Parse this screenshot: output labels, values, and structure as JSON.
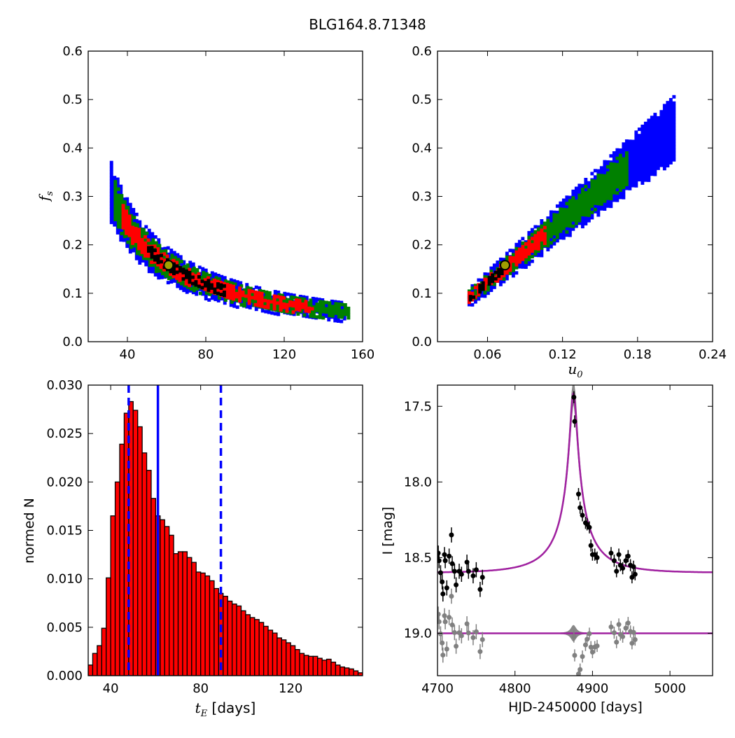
{
  "figure_title": "BLG164.8.71348",
  "colors": {
    "blue": "#0000ff",
    "green": "#008000",
    "red": "#ff0000",
    "black": "#000000",
    "marker_fill": "#a0a000",
    "marker_edge": "#000000",
    "hist_bar": "#ff0000",
    "model_line": "#a020a0",
    "model_band": "#888888",
    "residual_points": "#808080"
  },
  "chart_data": [
    {
      "type": "heatmap",
      "panel": "top-left",
      "xlabel": "",
      "ylabel": "f_s",
      "xlim": [
        20,
        160
      ],
      "ylim": [
        0.0,
        0.6
      ],
      "xticks": [
        "40",
        "80",
        "120",
        "160"
      ],
      "yticks": [
        "0.0",
        "0.1",
        "0.2",
        "0.3",
        "0.4",
        "0.5",
        "0.6"
      ],
      "relation": "fs = 9.6 / tE",
      "confidence_regions": [
        {
          "level": "outer",
          "color": "blue",
          "tE_range": [
            31,
            150
          ],
          "rel_halfwidth": 0.18
        },
        {
          "level": "mid",
          "color": "green",
          "tE_range": [
            33,
            153
          ],
          "rel_halfwidth": 0.12
        },
        {
          "level": "inner",
          "color": "red",
          "tE_range": [
            37,
            135
          ],
          "rel_halfwidth": 0.065
        },
        {
          "level": "core",
          "color": "black",
          "tE_range": [
            50,
            90
          ],
          "rel_halfwidth": 0.02
        }
      ],
      "best_fit": {
        "tE": 61,
        "fs": 0.158
      }
    },
    {
      "type": "heatmap",
      "panel": "top-right",
      "xlabel": "u_0",
      "ylabel": "",
      "xlim": [
        0.02,
        0.24
      ],
      "ylim": [
        0.0,
        0.6
      ],
      "xticks": [
        "0.06",
        "0.12",
        "0.18",
        "0.24"
      ],
      "yticks": [
        "0.0",
        "0.1",
        "0.2",
        "0.3",
        "0.4",
        "0.5",
        "0.6"
      ],
      "relation": "fs = 2.125 * u0",
      "confidence_regions": [
        {
          "level": "outer",
          "color": "blue",
          "u0_range": [
            0.044,
            0.209
          ],
          "rel_halfwidth": 0.14
        },
        {
          "level": "mid",
          "color": "green",
          "u0_range": [
            0.044,
            0.172
          ],
          "rel_halfwidth": 0.09
        },
        {
          "level": "inner",
          "color": "red",
          "u0_range": [
            0.044,
            0.105
          ],
          "rel_halfwidth": 0.05
        },
        {
          "level": "core",
          "color": "black",
          "u0_range": [
            0.045,
            0.072
          ],
          "rel_halfwidth": 0.015
        }
      ],
      "best_fit": {
        "u0": 0.074,
        "fs": 0.158
      }
    },
    {
      "type": "bar",
      "panel": "bottom-left",
      "xlabel": "t_E [days]",
      "ylabel": "normed N",
      "xlim": [
        30,
        152
      ],
      "ylim": [
        0.0,
        0.03
      ],
      "xticks": [
        "40",
        "80",
        "120"
      ],
      "yticks": [
        "0.000",
        "0.005",
        "0.010",
        "0.015",
        "0.020",
        "0.025",
        "0.030"
      ],
      "bin_start": 30,
      "bin_width": 2,
      "values": [
        0.0011,
        0.0023,
        0.0031,
        0.0049,
        0.0101,
        0.0165,
        0.02,
        0.0239,
        0.0271,
        0.0283,
        0.0274,
        0.0257,
        0.023,
        0.0212,
        0.0183,
        0.0165,
        0.0161,
        0.0154,
        0.0145,
        0.0126,
        0.0128,
        0.0128,
        0.0122,
        0.0117,
        0.0107,
        0.0106,
        0.0103,
        0.0098,
        0.009,
        0.0085,
        0.0082,
        0.0077,
        0.0074,
        0.0072,
        0.0067,
        0.0063,
        0.006,
        0.0058,
        0.0055,
        0.0051,
        0.0047,
        0.0044,
        0.0039,
        0.0037,
        0.0034,
        0.0031,
        0.0027,
        0.0023,
        0.0021,
        0.002,
        0.002,
        0.0018,
        0.0016,
        0.0017,
        0.0014,
        0.0011,
        0.0009,
        0.0008,
        0.0007,
        0.0005,
        0.0003
      ],
      "median_line": 61,
      "interval_lines": [
        48,
        89
      ]
    },
    {
      "type": "scatter",
      "panel": "bottom-right",
      "xlabel": "HJD-2450000 [days]",
      "ylabel": "I [mag]",
      "xlim": [
        4700,
        5055
      ],
      "ylim": [
        19.28,
        17.36
      ],
      "y_inverted": true,
      "xticks": [
        "4700",
        "4800",
        "4900",
        "5000"
      ],
      "yticks": [
        "17.5",
        "18.0",
        "18.5",
        "19.0"
      ],
      "model": {
        "t0": 4875.5,
        "tE": 61,
        "u0": 0.074,
        "fs": 0.158,
        "baseline": 18.6,
        "color": "purple"
      },
      "model_band": {
        "color": "gray"
      },
      "residual_offset": 19.0,
      "data_points": [
        {
          "t": 4701,
          "mag": 18.47,
          "err": 0.05
        },
        {
          "t": 4702,
          "mag": 18.52,
          "err": 0.05
        },
        {
          "t": 4704,
          "mag": 18.6,
          "err": 0.05
        },
        {
          "t": 4706,
          "mag": 18.66,
          "err": 0.05
        },
        {
          "t": 4707,
          "mag": 18.74,
          "err": 0.05
        },
        {
          "t": 4709,
          "mag": 18.48,
          "err": 0.05
        },
        {
          "t": 4710,
          "mag": 18.52,
          "err": 0.05
        },
        {
          "t": 4712,
          "mag": 18.7,
          "err": 0.05
        },
        {
          "t": 4715,
          "mag": 18.49,
          "err": 0.05
        },
        {
          "t": 4718,
          "mag": 18.35,
          "err": 0.05
        },
        {
          "t": 4719,
          "mag": 18.54,
          "err": 0.05
        },
        {
          "t": 4722,
          "mag": 18.59,
          "err": 0.05
        },
        {
          "t": 4724,
          "mag": 18.68,
          "err": 0.05
        },
        {
          "t": 4728,
          "mag": 18.59,
          "err": 0.05
        },
        {
          "t": 4731,
          "mag": 18.61,
          "err": 0.05
        },
        {
          "t": 4738,
          "mag": 18.53,
          "err": 0.05
        },
        {
          "t": 4740,
          "mag": 18.59,
          "err": 0.05
        },
        {
          "t": 4746,
          "mag": 18.62,
          "err": 0.05
        },
        {
          "t": 4750,
          "mag": 18.58,
          "err": 0.05
        },
        {
          "t": 4755,
          "mag": 18.71,
          "err": 0.05
        },
        {
          "t": 4758,
          "mag": 18.63,
          "err": 0.05
        },
        {
          "t": 4876,
          "mag": 17.44,
          "err": 0.04
        },
        {
          "t": 4877,
          "mag": 17.6,
          "err": 0.04
        },
        {
          "t": 4882,
          "mag": 18.08,
          "err": 0.04
        },
        {
          "t": 4884,
          "mag": 18.17,
          "err": 0.04
        },
        {
          "t": 4887,
          "mag": 18.22,
          "err": 0.04
        },
        {
          "t": 4891,
          "mag": 18.27,
          "err": 0.04
        },
        {
          "t": 4893,
          "mag": 18.28,
          "err": 0.04
        },
        {
          "t": 4896,
          "mag": 18.3,
          "err": 0.04
        },
        {
          "t": 4898,
          "mag": 18.42,
          "err": 0.04
        },
        {
          "t": 4900,
          "mag": 18.48,
          "err": 0.04
        },
        {
          "t": 4903,
          "mag": 18.48,
          "err": 0.04
        },
        {
          "t": 4906,
          "mag": 18.5,
          "err": 0.04
        },
        {
          "t": 4924,
          "mag": 18.47,
          "err": 0.04
        },
        {
          "t": 4928,
          "mag": 18.52,
          "err": 0.04
        },
        {
          "t": 4931,
          "mag": 18.59,
          "err": 0.04
        },
        {
          "t": 4934,
          "mag": 18.48,
          "err": 0.04
        },
        {
          "t": 4936,
          "mag": 18.55,
          "err": 0.04
        },
        {
          "t": 4939,
          "mag": 18.57,
          "err": 0.04
        },
        {
          "t": 4943,
          "mag": 18.52,
          "err": 0.04
        },
        {
          "t": 4946,
          "mag": 18.49,
          "err": 0.04
        },
        {
          "t": 4949,
          "mag": 18.55,
          "err": 0.04
        },
        {
          "t": 4951,
          "mag": 18.63,
          "err": 0.04
        },
        {
          "t": 4953,
          "mag": 18.56,
          "err": 0.04
        },
        {
          "t": 4955,
          "mag": 18.61,
          "err": 0.04
        }
      ]
    }
  ]
}
